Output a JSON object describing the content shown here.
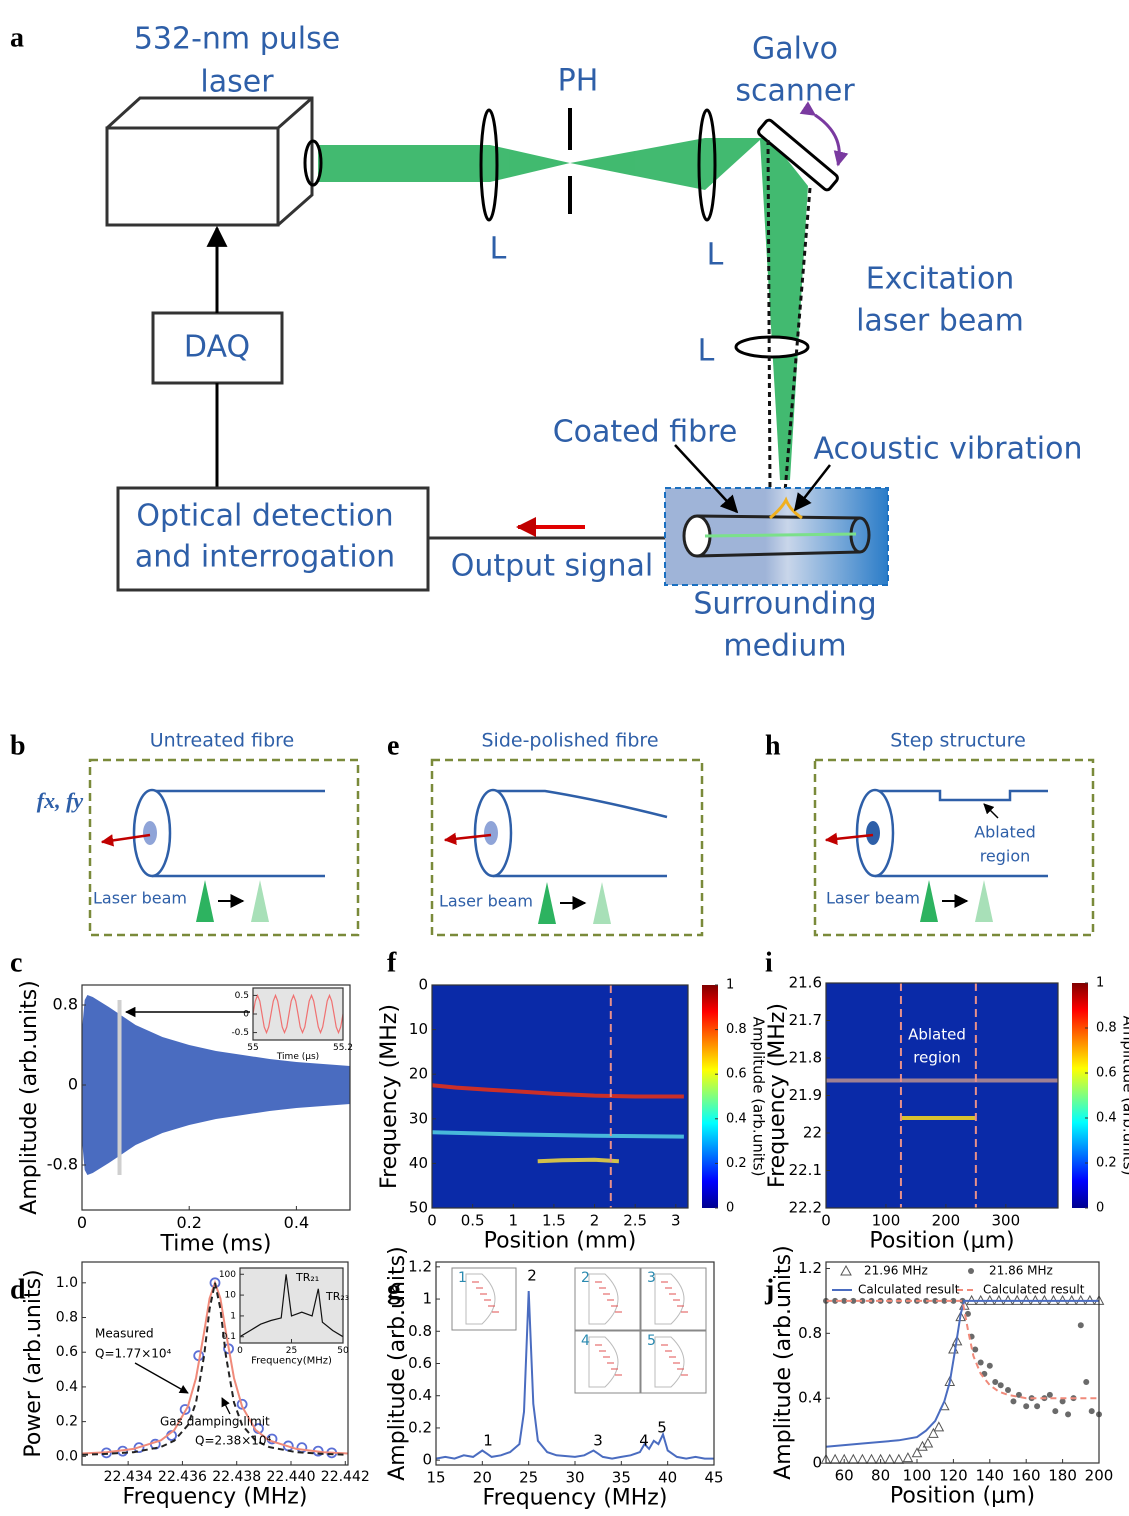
{
  "figure_labels": [
    "a",
    "b",
    "c",
    "d",
    "e",
    "f",
    "g",
    "h",
    "i",
    "j"
  ],
  "diagram": {
    "laser": [
      "532-nm pulse",
      "laser"
    ],
    "pinhole": "PH",
    "galvo": [
      "Galvo",
      "scanner"
    ],
    "lens": "L",
    "excitation": [
      "Excitation",
      "laser beam"
    ],
    "daq": "DAQ",
    "detection": [
      "Optical detection",
      "and interrogation"
    ],
    "output": "Output signal",
    "fibre": "Coated fibre",
    "vibration": "Acoustic vibration",
    "medium": [
      "Surrounding",
      "medium"
    ]
  },
  "schematics": [
    {
      "title": "Untreated fibre",
      "force": "fx, fy",
      "laser": "Laser beam"
    },
    {
      "title": "Side-polished fibre",
      "laser": "Laser beam"
    },
    {
      "title": "Step structure",
      "laser": "Laser beam",
      "note": [
        "Ablated",
        "region"
      ]
    }
  ],
  "chart_data": [
    {
      "type": "area",
      "xlabel": "Time (ms)",
      "ylabel": "Amplitude (arb.units)",
      "color": "#4a6cc0",
      "xlim": [
        0,
        0.5
      ],
      "xticks": [
        0,
        0.2,
        0.4
      ],
      "ylim": [
        -1.25,
        1
      ],
      "yticks": [
        -0.8,
        0,
        0.8
      ],
      "x": [
        0,
        0.005,
        0.01,
        0.02,
        0.05,
        0.1,
        0.15,
        0.2,
        0.25,
        0.3,
        0.35,
        0.4,
        0.45,
        0.5
      ],
      "values": [
        0.55,
        0.85,
        0.9,
        0.88,
        0.78,
        0.6,
        0.48,
        0.4,
        0.34,
        0.3,
        0.26,
        0.23,
        0.21,
        0.19
      ],
      "inset": {
        "type": "line",
        "xlabel": "Time (μs)",
        "color": "#f07070",
        "xlim": [
          55,
          55.2
        ],
        "xticks": [
          55,
          55.2
        ],
        "ylim": [
          -0.7,
          0.7
        ],
        "yticks": [
          -0.5,
          0,
          0.5
        ],
        "x": [
          55,
          55.005,
          55.01,
          55.015,
          55.02,
          55.025,
          55.03,
          55.035,
          55.04,
          55.045,
          55.05,
          55.055,
          55.06,
          55.065,
          55.07,
          55.075,
          55.08,
          55.085,
          55.09,
          55.095,
          55.1,
          55.105,
          55.11,
          55.115,
          55.12,
          55.125,
          55.13,
          55.135,
          55.14,
          55.145,
          55.15,
          55.155,
          55.16,
          55.165,
          55.17,
          55.175,
          55.18,
          55.185,
          55.19,
          55.195,
          55.2
        ],
        "values": [
          0,
          0.35,
          0.5,
          0.35,
          0,
          -0.35,
          -0.5,
          -0.35,
          0,
          0.35,
          0.5,
          0.35,
          0,
          -0.35,
          -0.5,
          -0.35,
          0,
          0.35,
          0.5,
          0.35,
          0,
          -0.35,
          -0.5,
          -0.35,
          0,
          0.35,
          0.5,
          0.35,
          0,
          -0.35,
          -0.5,
          -0.35,
          0,
          0.35,
          0.5,
          0.35,
          0,
          -0.35,
          -0.5,
          -0.35,
          0
        ]
      }
    },
    {
      "type": "heatmap",
      "xlabel": "Position (mm)",
      "ylabel": "Frequency (MHz)",
      "colorbar_label": "Amplitude (arb.units)",
      "colorbar_ticks": [
        0,
        0.2,
        0.4,
        0.6,
        0.8,
        1
      ],
      "xlim": [
        0,
        3.15
      ],
      "xticks": [
        0,
        0.5,
        1,
        1.5,
        2,
        2.5,
        3
      ],
      "ylim": [
        0,
        50
      ],
      "y_reversed": true,
      "yticks": [
        0,
        10,
        20,
        30,
        40,
        50
      ],
      "markers_x": [
        2.2
      ],
      "marker_color": "#e8908a",
      "series": [
        {
          "color": "#e0301a",
          "x": [
            0,
            0.3,
            0.7,
            1,
            1.5,
            2,
            2.5,
            3.1
          ],
          "values": [
            22.5,
            23,
            23.5,
            23.8,
            24.4,
            24.8,
            25,
            25
          ]
        },
        {
          "color": "#4fc8e0",
          "x": [
            0,
            1,
            2,
            3.1
          ],
          "values": [
            33,
            33.5,
            33.8,
            34
          ]
        },
        {
          "color": "#e8d040",
          "x": [
            1.3,
            1.6,
            2,
            2.3
          ],
          "values": [
            39.5,
            39.3,
            39.2,
            39.5
          ]
        }
      ]
    },
    {
      "type": "heatmap",
      "xlabel": "Position (μm)",
      "ylabel": "Frequency (MHz)",
      "colorbar_label": "Amplitude (arb.units)",
      "colorbar_ticks": [
        0,
        0.2,
        0.4,
        0.6,
        0.8,
        1
      ],
      "xlim": [
        0,
        387
      ],
      "xticks": [
        0,
        100,
        200,
        300
      ],
      "ylim": [
        21.6,
        22.2
      ],
      "y_reversed": true,
      "yticks": [
        21.6,
        21.7,
        21.8,
        21.9,
        22,
        22.1,
        22.2
      ],
      "markers_x": [
        125,
        250
      ],
      "marker_color": "#e8908a",
      "annotation": [
        "Ablated",
        "region"
      ],
      "series": [
        {
          "color": "#b08a90",
          "x": [
            0,
            387
          ],
          "values": [
            21.86,
            21.86
          ]
        },
        {
          "color": "#f0d020",
          "x": [
            125,
            250
          ],
          "values": [
            21.96,
            21.96
          ]
        }
      ]
    },
    {
      "type": "line",
      "xlabel": "Frequency (MHz)",
      "ylabel": "Power (arb.units)",
      "xlim": [
        22.4323,
        22.4421
      ],
      "xticks": [
        22.434,
        22.436,
        22.438,
        {
          "value": 22.44,
          "label": "22.440"
        },
        22.442
      ],
      "ylim": [
        -0.05,
        1.12
      ],
      "yticks": [
        {
          "value": 0,
          "label": "0.0"
        },
        0.2,
        0.4,
        0.6,
        0.8,
        {
          "value": 1,
          "label": "1.0"
        }
      ],
      "annotations": [
        "Measured",
        "Q=1.77×10⁴",
        "Gas damping limit",
        "Q=2.38×10⁴"
      ],
      "series": [
        {
          "color": "#5b6fd6",
          "style": "open-circle",
          "x": [
            22.4332,
            22.4338,
            22.4344,
            22.435,
            22.4356,
            22.4361,
            22.4366,
            22.4372,
            22.4377,
            22.4382,
            22.4388,
            22.4393,
            22.4399,
            22.4404,
            22.441,
            22.4415
          ],
          "values": [
            0.02,
            0.03,
            0.05,
            0.07,
            0.12,
            0.27,
            0.58,
            1,
            0.62,
            0.3,
            0.16,
            0.1,
            0.06,
            0.05,
            0.03,
            0.02
          ]
        },
        {
          "color": "#f08a7a",
          "style": "line",
          "x": [
            22.4323,
            22.4332,
            22.4342,
            22.4352,
            22.4357,
            22.4362,
            22.4365,
            22.4368,
            22.437,
            22.4372,
            22.4374,
            22.4376,
            22.4379,
            22.4382,
            22.4387,
            22.4392,
            22.4402,
            22.4412,
            22.4421
          ],
          "values": [
            0.016,
            0.024,
            0.043,
            0.091,
            0.151,
            0.287,
            0.451,
            0.715,
            0.91,
            1,
            0.91,
            0.715,
            0.451,
            0.287,
            0.151,
            0.091,
            0.043,
            0.024,
            0.016
          ]
        },
        {
          "color": "#222222",
          "style": "dashed",
          "x": [
            22.4323,
            22.4332,
            22.4342,
            22.4352,
            22.4357,
            22.4362,
            22.4365,
            22.4368,
            22.437,
            22.4372,
            22.4374,
            22.4376,
            22.4379,
            22.4382,
            22.4387,
            22.4392,
            22.4402,
            22.4412,
            22.4421
          ],
          "values": [
            0.009,
            0.014,
            0.024,
            0.053,
            0.09,
            0.18,
            0.31,
            0.58,
            0.85,
            1,
            0.85,
            0.58,
            0.31,
            0.18,
            0.09,
            0.053,
            0.024,
            0.014,
            0.009
          ]
        }
      ],
      "inset": {
        "type": "line",
        "xlabel": "Frequency(MHz)",
        "color": "#111111",
        "log_y": true,
        "xlim": [
          0,
          50
        ],
        "xticks": [
          0,
          25,
          50
        ],
        "ylim": [
          0.05,
          200
        ],
        "yticks": [
          0.1,
          1,
          10,
          100
        ],
        "peak_labels": [
          "TR₂₁",
          "TR₂₃"
        ],
        "x": [
          0,
          5,
          10,
          15,
          20,
          22.4,
          25,
          30,
          35,
          38,
          40,
          45,
          50
        ],
        "values": [
          0.1,
          0.2,
          0.4,
          0.6,
          0.8,
          100,
          1,
          1.5,
          1,
          20,
          0.5,
          0.2,
          0.1
        ]
      }
    },
    {
      "type": "line",
      "xlabel": "Frequency (MHz)",
      "ylabel": "Amplitude (arb.units)",
      "xlim": [
        15,
        45
      ],
      "xticks": [
        15,
        20,
        25,
        30,
        35,
        40,
        45
      ],
      "ylim": [
        -0.03,
        1.23
      ],
      "yticks": [
        0,
        0.2,
        0.4,
        0.6,
        0.8,
        1,
        1.2
      ],
      "peak_labels": [
        "1",
        "2",
        "3",
        "4",
        "5"
      ],
      "mode_labels": [
        "1",
        "2",
        "3",
        "4",
        "5"
      ],
      "series": [
        {
          "color": "#4a6cc0",
          "style": "line",
          "x": [
            15,
            16,
            17,
            18,
            19,
            20,
            20.5,
            21,
            22,
            23,
            24,
            24.5,
            25,
            25.5,
            26,
            27,
            28,
            30,
            31,
            32,
            32.5,
            33,
            34,
            35,
            36,
            37,
            37.5,
            38,
            38.5,
            39,
            39.5,
            40,
            41,
            42,
            43,
            44,
            45
          ],
          "values": [
            0.01,
            0.02,
            0.01,
            0.03,
            0.02,
            0.06,
            0.04,
            0.02,
            0.03,
            0.05,
            0.1,
            0.3,
            1.05,
            0.35,
            0.12,
            0.05,
            0.03,
            0.02,
            0.03,
            0.06,
            0.04,
            0.02,
            0.01,
            0.02,
            0.03,
            0.05,
            0.1,
            0.07,
            0.12,
            0.1,
            0.16,
            0.06,
            0.02,
            0.01,
            0.02,
            0.01,
            0.01
          ]
        }
      ]
    },
    {
      "type": "line",
      "xlabel": "Position (μm)",
      "ylabel": "Amplitude (arb.units)",
      "xlim": [
        50,
        200
      ],
      "xticks": [
        60,
        80,
        100,
        120,
        140,
        160,
        180,
        200
      ],
      "ylim": [
        0,
        1.24
      ],
      "yticks": [
        0,
        0.4,
        0.8,
        1.2
      ],
      "series": [
        {
          "name": "21.96 MHz",
          "color": "#555555",
          "style": "open-triangle",
          "x": [
            50,
            55,
            60,
            65,
            70,
            75,
            80,
            85,
            90,
            95,
            100,
            103,
            106,
            109,
            112,
            115,
            118,
            120,
            122,
            124,
            126,
            130,
            135,
            140,
            145,
            150,
            155,
            160,
            165,
            170,
            175,
            180,
            185,
            190,
            195,
            200
          ],
          "values": [
            0.02,
            0.02,
            0.02,
            0.02,
            0.02,
            0.02,
            0.02,
            0.02,
            0.02,
            0.03,
            0.06,
            0.1,
            0.12,
            0.18,
            0.22,
            0.35,
            0.5,
            0.7,
            0.75,
            0.9,
            0.97,
            1,
            1,
            1,
            1,
            1,
            1,
            1,
            1,
            1,
            1,
            1,
            1,
            1,
            1,
            1
          ]
        },
        {
          "name": "21.86 MHz",
          "color": "#6a6a6a",
          "style": "dot",
          "x": [
            50,
            55,
            60,
            65,
            70,
            75,
            80,
            85,
            90,
            95,
            100,
            105,
            110,
            115,
            120,
            125,
            128,
            130,
            132,
            135,
            137,
            140,
            143,
            146,
            150,
            153,
            156,
            160,
            163,
            166,
            170,
            173,
            176,
            180,
            183,
            186,
            190,
            193,
            196,
            200
          ],
          "values": [
            1,
            1,
            1,
            1,
            1,
            1,
            1,
            1,
            1,
            1,
            1,
            1,
            1,
            1,
            1,
            1,
            0.92,
            0.78,
            0.7,
            0.62,
            0.55,
            0.6,
            0.5,
            0.48,
            0.45,
            0.38,
            0.42,
            0.35,
            0.4,
            0.35,
            0.4,
            0.42,
            0.32,
            0.38,
            0.3,
            0.4,
            0.85,
            0.5,
            0.32,
            0.3
          ]
        },
        {
          "name": "Calculated result",
          "color": "#4a6cc0",
          "style": "line",
          "x": [
            50,
            70,
            90,
            100,
            105,
            110,
            115,
            118,
            121,
            124,
            126,
            200
          ],
          "values": [
            0.1,
            0.12,
            0.14,
            0.16,
            0.2,
            0.26,
            0.38,
            0.5,
            0.7,
            0.92,
            1,
            1
          ]
        },
        {
          "name": "Calculated result",
          "color": "#f08a7a",
          "style": "dashed",
          "x": [
            50,
            125,
            128,
            131,
            135,
            140,
            145,
            150,
            160,
            180,
            200
          ],
          "values": [
            1,
            1,
            0.82,
            0.66,
            0.55,
            0.48,
            0.44,
            0.42,
            0.4,
            0.4,
            0.4
          ]
        }
      ]
    }
  ]
}
